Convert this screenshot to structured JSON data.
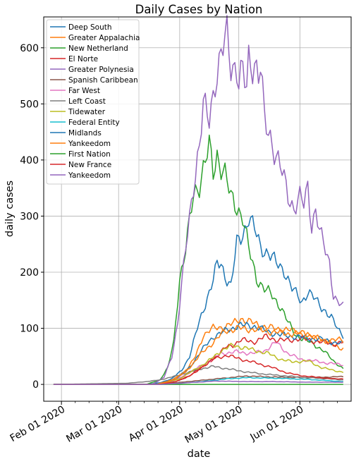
{
  "chart_data": {
    "type": "line",
    "title": "Daily Cases by Nation",
    "xlabel": "date",
    "ylabel": "daily cases",
    "x_start": "2020-01-28",
    "x_end": "2020-06-23",
    "xlim": [
      "2020-01-23",
      "2020-06-27"
    ],
    "ylim": [
      -30,
      655
    ],
    "yticks": [
      0,
      100,
      200,
      300,
      400,
      500,
      600
    ],
    "xticks": [
      {
        "date": "2020-02-01",
        "label": "Feb 01 2020"
      },
      {
        "date": "2020-03-01",
        "label": "Mar 01 2020"
      },
      {
        "date": "2020-04-01",
        "label": "Apr 01 2020"
      },
      {
        "date": "2020-05-01",
        "label": "May 01 2020"
      },
      {
        "date": "2020-06-01",
        "label": "Jun 01 2020"
      }
    ],
    "grid": true,
    "legend_position": "top-left",
    "series": [
      {
        "name": "Deep South",
        "color": "#1f77b4",
        "points": [
          [
            "2020-01-28",
            0
          ],
          [
            "2020-03-15",
            0
          ],
          [
            "2020-03-22",
            3
          ],
          [
            "2020-03-28",
            10
          ],
          [
            "2020-04-02",
            25
          ],
          [
            "2020-04-06",
            50
          ],
          [
            "2020-04-10",
            100
          ],
          [
            "2020-04-14",
            145
          ],
          [
            "2020-04-18",
            185
          ],
          [
            "2020-04-20",
            213
          ],
          [
            "2020-04-22",
            215
          ],
          [
            "2020-04-24",
            195
          ],
          [
            "2020-04-27",
            175
          ],
          [
            "2020-04-30",
            250
          ],
          [
            "2020-05-03",
            268
          ],
          [
            "2020-05-06",
            300
          ],
          [
            "2020-05-09",
            275
          ],
          [
            "2020-05-12",
            245
          ],
          [
            "2020-05-16",
            235
          ],
          [
            "2020-05-20",
            215
          ],
          [
            "2020-05-24",
            205
          ],
          [
            "2020-05-28",
            170
          ],
          [
            "2020-06-02",
            148
          ],
          [
            "2020-06-05",
            165
          ],
          [
            "2020-06-09",
            150
          ],
          [
            "2020-06-13",
            135
          ],
          [
            "2020-06-17",
            118
          ],
          [
            "2020-06-20",
            100
          ],
          [
            "2020-06-23",
            88
          ]
        ]
      },
      {
        "name": "Greater Appalachia",
        "color": "#ff7f0e",
        "points": [
          [
            "2020-01-28",
            0
          ],
          [
            "2020-03-20",
            0
          ],
          [
            "2020-03-28",
            8
          ],
          [
            "2020-04-04",
            22
          ],
          [
            "2020-04-09",
            50
          ],
          [
            "2020-04-13",
            88
          ],
          [
            "2020-04-18",
            100
          ],
          [
            "2020-04-24",
            103
          ],
          [
            "2020-04-28",
            108
          ],
          [
            "2020-05-02",
            118
          ],
          [
            "2020-05-06",
            112
          ],
          [
            "2020-05-12",
            105
          ],
          [
            "2020-05-18",
            100
          ],
          [
            "2020-05-25",
            98
          ],
          [
            "2020-06-01",
            92
          ],
          [
            "2020-06-07",
            85
          ],
          [
            "2020-06-13",
            78
          ],
          [
            "2020-06-18",
            70
          ],
          [
            "2020-06-23",
            64
          ]
        ]
      },
      {
        "name": "New Netherland",
        "color": "#2ca02c",
        "points": [
          [
            "2020-01-28",
            0
          ],
          [
            "2020-03-15",
            0
          ],
          [
            "2020-03-22",
            8
          ],
          [
            "2020-03-26",
            30
          ],
          [
            "2020-03-29",
            75
          ],
          [
            "2020-04-01",
            190
          ],
          [
            "2020-04-04",
            240
          ],
          [
            "2020-04-08",
            335
          ],
          [
            "2020-04-11",
            360
          ],
          [
            "2020-04-14",
            400
          ],
          [
            "2020-04-16",
            420
          ],
          [
            "2020-04-18",
            375
          ],
          [
            "2020-04-20",
            410
          ],
          [
            "2020-04-24",
            375
          ],
          [
            "2020-04-27",
            330
          ],
          [
            "2020-04-30",
            318
          ],
          [
            "2020-05-03",
            300
          ],
          [
            "2020-05-06",
            240
          ],
          [
            "2020-05-10",
            190
          ],
          [
            "2020-05-14",
            170
          ],
          [
            "2020-05-18",
            158
          ],
          [
            "2020-05-22",
            140
          ],
          [
            "2020-05-26",
            110
          ],
          [
            "2020-05-30",
            88
          ],
          [
            "2020-06-03",
            80
          ],
          [
            "2020-06-08",
            72
          ],
          [
            "2020-06-13",
            60
          ],
          [
            "2020-06-18",
            42
          ],
          [
            "2020-06-23",
            28
          ]
        ]
      },
      {
        "name": "El Norte",
        "color": "#d62728",
        "points": [
          [
            "2020-01-28",
            0
          ],
          [
            "2020-03-22",
            0
          ],
          [
            "2020-03-30",
            5
          ],
          [
            "2020-04-06",
            15
          ],
          [
            "2020-04-12",
            30
          ],
          [
            "2020-04-18",
            45
          ],
          [
            "2020-04-24",
            65
          ],
          [
            "2020-04-28",
            70
          ],
          [
            "2020-05-02",
            80
          ],
          [
            "2020-05-08",
            75
          ],
          [
            "2020-05-14",
            85
          ],
          [
            "2020-05-20",
            80
          ],
          [
            "2020-05-26",
            78
          ],
          [
            "2020-06-01",
            82
          ],
          [
            "2020-06-07",
            78
          ],
          [
            "2020-06-13",
            75
          ],
          [
            "2020-06-18",
            72
          ],
          [
            "2020-06-23",
            75
          ]
        ]
      },
      {
        "name": "Greater Polynesia",
        "color": "#9467bd",
        "points": [
          [
            "2020-01-28",
            0
          ],
          [
            "2020-03-18",
            0
          ],
          [
            "2020-03-24",
            12
          ],
          [
            "2020-03-28",
            50
          ],
          [
            "2020-03-31",
            110
          ],
          [
            "2020-04-02",
            175
          ],
          [
            "2020-04-05",
            270
          ],
          [
            "2020-04-08",
            360
          ],
          [
            "2020-04-11",
            420
          ],
          [
            "2020-04-13",
            490
          ],
          [
            "2020-04-16",
            480
          ],
          [
            "2020-04-19",
            545
          ],
          [
            "2020-04-21",
            560
          ],
          [
            "2020-04-23",
            595
          ],
          [
            "2020-04-25",
            625
          ],
          [
            "2020-04-27",
            580
          ],
          [
            "2020-04-30",
            560
          ],
          [
            "2020-05-01",
            535
          ],
          [
            "2020-05-03",
            550
          ],
          [
            "2020-05-05",
            530
          ],
          [
            "2020-05-06",
            585
          ],
          [
            "2020-05-09",
            575
          ],
          [
            "2020-05-11",
            545
          ],
          [
            "2020-05-12",
            560
          ],
          [
            "2020-05-14",
            470
          ],
          [
            "2020-05-16",
            455
          ],
          [
            "2020-05-18",
            435
          ],
          [
            "2020-05-20",
            405
          ],
          [
            "2020-05-23",
            375
          ],
          [
            "2020-05-26",
            340
          ],
          [
            "2020-05-29",
            315
          ],
          [
            "2020-06-01",
            330
          ],
          [
            "2020-06-03",
            320
          ],
          [
            "2020-06-05",
            355
          ],
          [
            "2020-06-07",
            285
          ],
          [
            "2020-06-09",
            310
          ],
          [
            "2020-06-11",
            270
          ],
          [
            "2020-06-14",
            240
          ],
          [
            "2020-06-16",
            220
          ],
          [
            "2020-06-18",
            160
          ],
          [
            "2020-06-20",
            145
          ],
          [
            "2020-06-23",
            138
          ]
        ]
      },
      {
        "name": "Spanish Caribbean",
        "color": "#8c564b",
        "points": [
          [
            "2020-01-28",
            0
          ],
          [
            "2020-03-22",
            0
          ],
          [
            "2020-04-05",
            5
          ],
          [
            "2020-04-20",
            10
          ],
          [
            "2020-05-05",
            15
          ],
          [
            "2020-05-20",
            13
          ],
          [
            "2020-06-05",
            12
          ],
          [
            "2020-06-23",
            14
          ]
        ]
      },
      {
        "name": "Far West",
        "color": "#e377c2",
        "points": [
          [
            "2020-01-28",
            0
          ],
          [
            "2020-03-22",
            0
          ],
          [
            "2020-03-30",
            8
          ],
          [
            "2020-04-08",
            25
          ],
          [
            "2020-04-15",
            40
          ],
          [
            "2020-04-22",
            55
          ],
          [
            "2020-04-30",
            58
          ],
          [
            "2020-05-08",
            55
          ],
          [
            "2020-05-14",
            60
          ],
          [
            "2020-05-20",
            75
          ],
          [
            "2020-05-26",
            55
          ],
          [
            "2020-06-01",
            45
          ],
          [
            "2020-06-08",
            42
          ],
          [
            "2020-06-15",
            38
          ],
          [
            "2020-06-23",
            35
          ]
        ]
      },
      {
        "name": "Left Coast",
        "color": "#7f7f7f",
        "points": [
          [
            "2020-01-28",
            0
          ],
          [
            "2020-03-05",
            2
          ],
          [
            "2020-03-15",
            5
          ],
          [
            "2020-03-22",
            8
          ],
          [
            "2020-03-30",
            15
          ],
          [
            "2020-04-06",
            22
          ],
          [
            "2020-04-12",
            28
          ],
          [
            "2020-04-18",
            32
          ],
          [
            "2020-04-25",
            28
          ],
          [
            "2020-05-05",
            22
          ],
          [
            "2020-05-15",
            18
          ],
          [
            "2020-05-25",
            15
          ],
          [
            "2020-06-05",
            12
          ],
          [
            "2020-06-15",
            10
          ],
          [
            "2020-06-23",
            8
          ]
        ]
      },
      {
        "name": "Tidewater",
        "color": "#bcbd22",
        "points": [
          [
            "2020-01-28",
            0
          ],
          [
            "2020-03-22",
            0
          ],
          [
            "2020-04-01",
            10
          ],
          [
            "2020-04-08",
            25
          ],
          [
            "2020-04-15",
            40
          ],
          [
            "2020-04-22",
            60
          ],
          [
            "2020-04-28",
            70
          ],
          [
            "2020-05-04",
            65
          ],
          [
            "2020-05-10",
            60
          ],
          [
            "2020-05-16",
            55
          ],
          [
            "2020-05-22",
            45
          ],
          [
            "2020-05-28",
            40
          ],
          [
            "2020-06-05",
            42
          ],
          [
            "2020-06-12",
            30
          ],
          [
            "2020-06-18",
            25
          ],
          [
            "2020-06-23",
            22
          ]
        ]
      },
      {
        "name": "Federal Entity",
        "color": "#17becf",
        "points": [
          [
            "2020-01-28",
            0
          ],
          [
            "2020-03-25",
            0
          ],
          [
            "2020-04-05",
            3
          ],
          [
            "2020-04-15",
            6
          ],
          [
            "2020-04-25",
            10
          ],
          [
            "2020-05-05",
            12
          ],
          [
            "2020-05-20",
            11
          ],
          [
            "2020-06-05",
            9
          ],
          [
            "2020-06-23",
            5
          ]
        ]
      },
      {
        "name": "Midlands",
        "color": "#1f77b4",
        "points": [
          [
            "2020-01-28",
            0
          ],
          [
            "2020-03-22",
            0
          ],
          [
            "2020-03-30",
            10
          ],
          [
            "2020-04-06",
            30
          ],
          [
            "2020-04-12",
            60
          ],
          [
            "2020-04-18",
            85
          ],
          [
            "2020-04-24",
            95
          ],
          [
            "2020-05-01",
            105
          ],
          [
            "2020-05-08",
            105
          ],
          [
            "2020-05-15",
            95
          ],
          [
            "2020-05-22",
            88
          ],
          [
            "2020-05-30",
            85
          ],
          [
            "2020-06-06",
            82
          ],
          [
            "2020-06-13",
            80
          ],
          [
            "2020-06-18",
            75
          ],
          [
            "2020-06-23",
            72
          ]
        ]
      },
      {
        "name": "Yankeedom",
        "color": "#ff7f0e",
        "points": [
          [
            "2020-01-28",
            0
          ],
          [
            "2020-03-22",
            0
          ],
          [
            "2020-03-30",
            10
          ],
          [
            "2020-04-06",
            30
          ],
          [
            "2020-04-12",
            55
          ],
          [
            "2020-04-18",
            75
          ],
          [
            "2020-04-24",
            95
          ],
          [
            "2020-05-01",
            100
          ],
          [
            "2020-05-08",
            98
          ],
          [
            "2020-05-15",
            95
          ],
          [
            "2020-05-22",
            92
          ],
          [
            "2020-05-28",
            90
          ],
          [
            "2020-06-03",
            92
          ],
          [
            "2020-06-08",
            85
          ],
          [
            "2020-06-13",
            78
          ],
          [
            "2020-06-18",
            80
          ],
          [
            "2020-06-23",
            78
          ]
        ]
      },
      {
        "name": "First Nation",
        "color": "#2ca02c",
        "points": [
          [
            "2020-01-28",
            0
          ],
          [
            "2020-06-23",
            0
          ]
        ]
      },
      {
        "name": "New France",
        "color": "#d62728",
        "points": [
          [
            "2020-01-28",
            0
          ],
          [
            "2020-03-22",
            0
          ],
          [
            "2020-03-30",
            5
          ],
          [
            "2020-04-06",
            15
          ],
          [
            "2020-04-12",
            30
          ],
          [
            "2020-04-18",
            45
          ],
          [
            "2020-04-25",
            52
          ],
          [
            "2020-05-02",
            45
          ],
          [
            "2020-05-10",
            38
          ],
          [
            "2020-05-18",
            30
          ],
          [
            "2020-05-26",
            20
          ],
          [
            "2020-06-03",
            15
          ],
          [
            "2020-06-12",
            12
          ],
          [
            "2020-06-18",
            10
          ],
          [
            "2020-06-23",
            10
          ]
        ]
      },
      {
        "name": "Yankeedom",
        "color": "#9467bd",
        "points": [
          [
            "2020-01-28",
            0
          ],
          [
            "2020-03-22",
            0
          ],
          [
            "2020-04-05",
            3
          ],
          [
            "2020-04-20",
            6
          ],
          [
            "2020-05-05",
            5
          ],
          [
            "2020-05-20",
            5
          ],
          [
            "2020-06-05",
            4
          ],
          [
            "2020-06-23",
            4
          ]
        ]
      }
    ]
  }
}
